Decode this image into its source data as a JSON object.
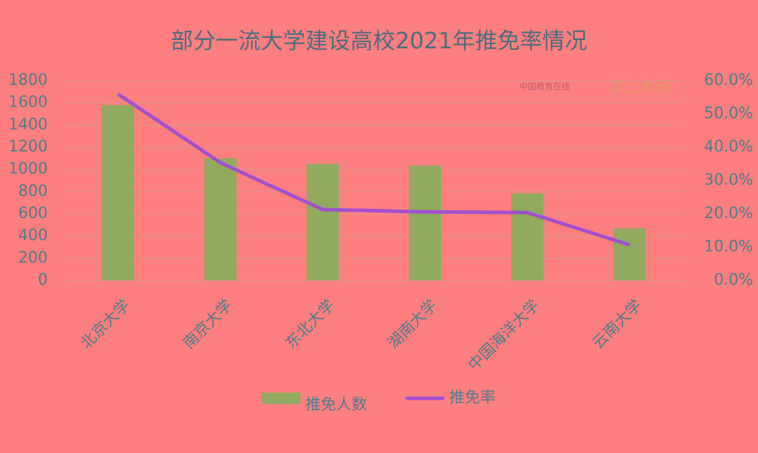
{
  "chart_data": {
    "type": "bar",
    "title": "部分一流大学建设高校2021年推免率情况",
    "categories": [
      "北京大学",
      "南京大学",
      "东北大学",
      "湖南大学",
      "中国海洋大学",
      "云南大学"
    ],
    "series": [
      {
        "name": "推免人数",
        "type": "bar",
        "color": "#90a95e",
        "values": [
          1580,
          1100,
          1050,
          1035,
          785,
          470
        ]
      },
      {
        "name": "推免率",
        "type": "line",
        "axis": "y2",
        "color": "#a24fd0",
        "values": [
          56,
          35.4,
          21.3,
          20.6,
          20.4,
          10.7
        ]
      }
    ],
    "ylim": [
      0,
      1800
    ],
    "yticks": [
      0,
      200,
      400,
      600,
      800,
      1000,
      1200,
      1400,
      1600,
      1800
    ],
    "y2lim": [
      0,
      60
    ],
    "y2ticks": [
      {
        "value": 0,
        "label": "0.0%"
      },
      {
        "value": 10,
        "label": "10.0%"
      },
      {
        "value": 20,
        "label": "20.0%"
      },
      {
        "value": 30,
        "label": "30.0%"
      },
      {
        "value": 40,
        "label": "40.0%"
      },
      {
        "value": 50,
        "label": "50.0%"
      },
      {
        "value": 60,
        "label": "60.0%"
      }
    ],
    "grid": true,
    "legend": "bottom",
    "watermark": [
      "中国教育在线",
      "掌上考研"
    ]
  }
}
